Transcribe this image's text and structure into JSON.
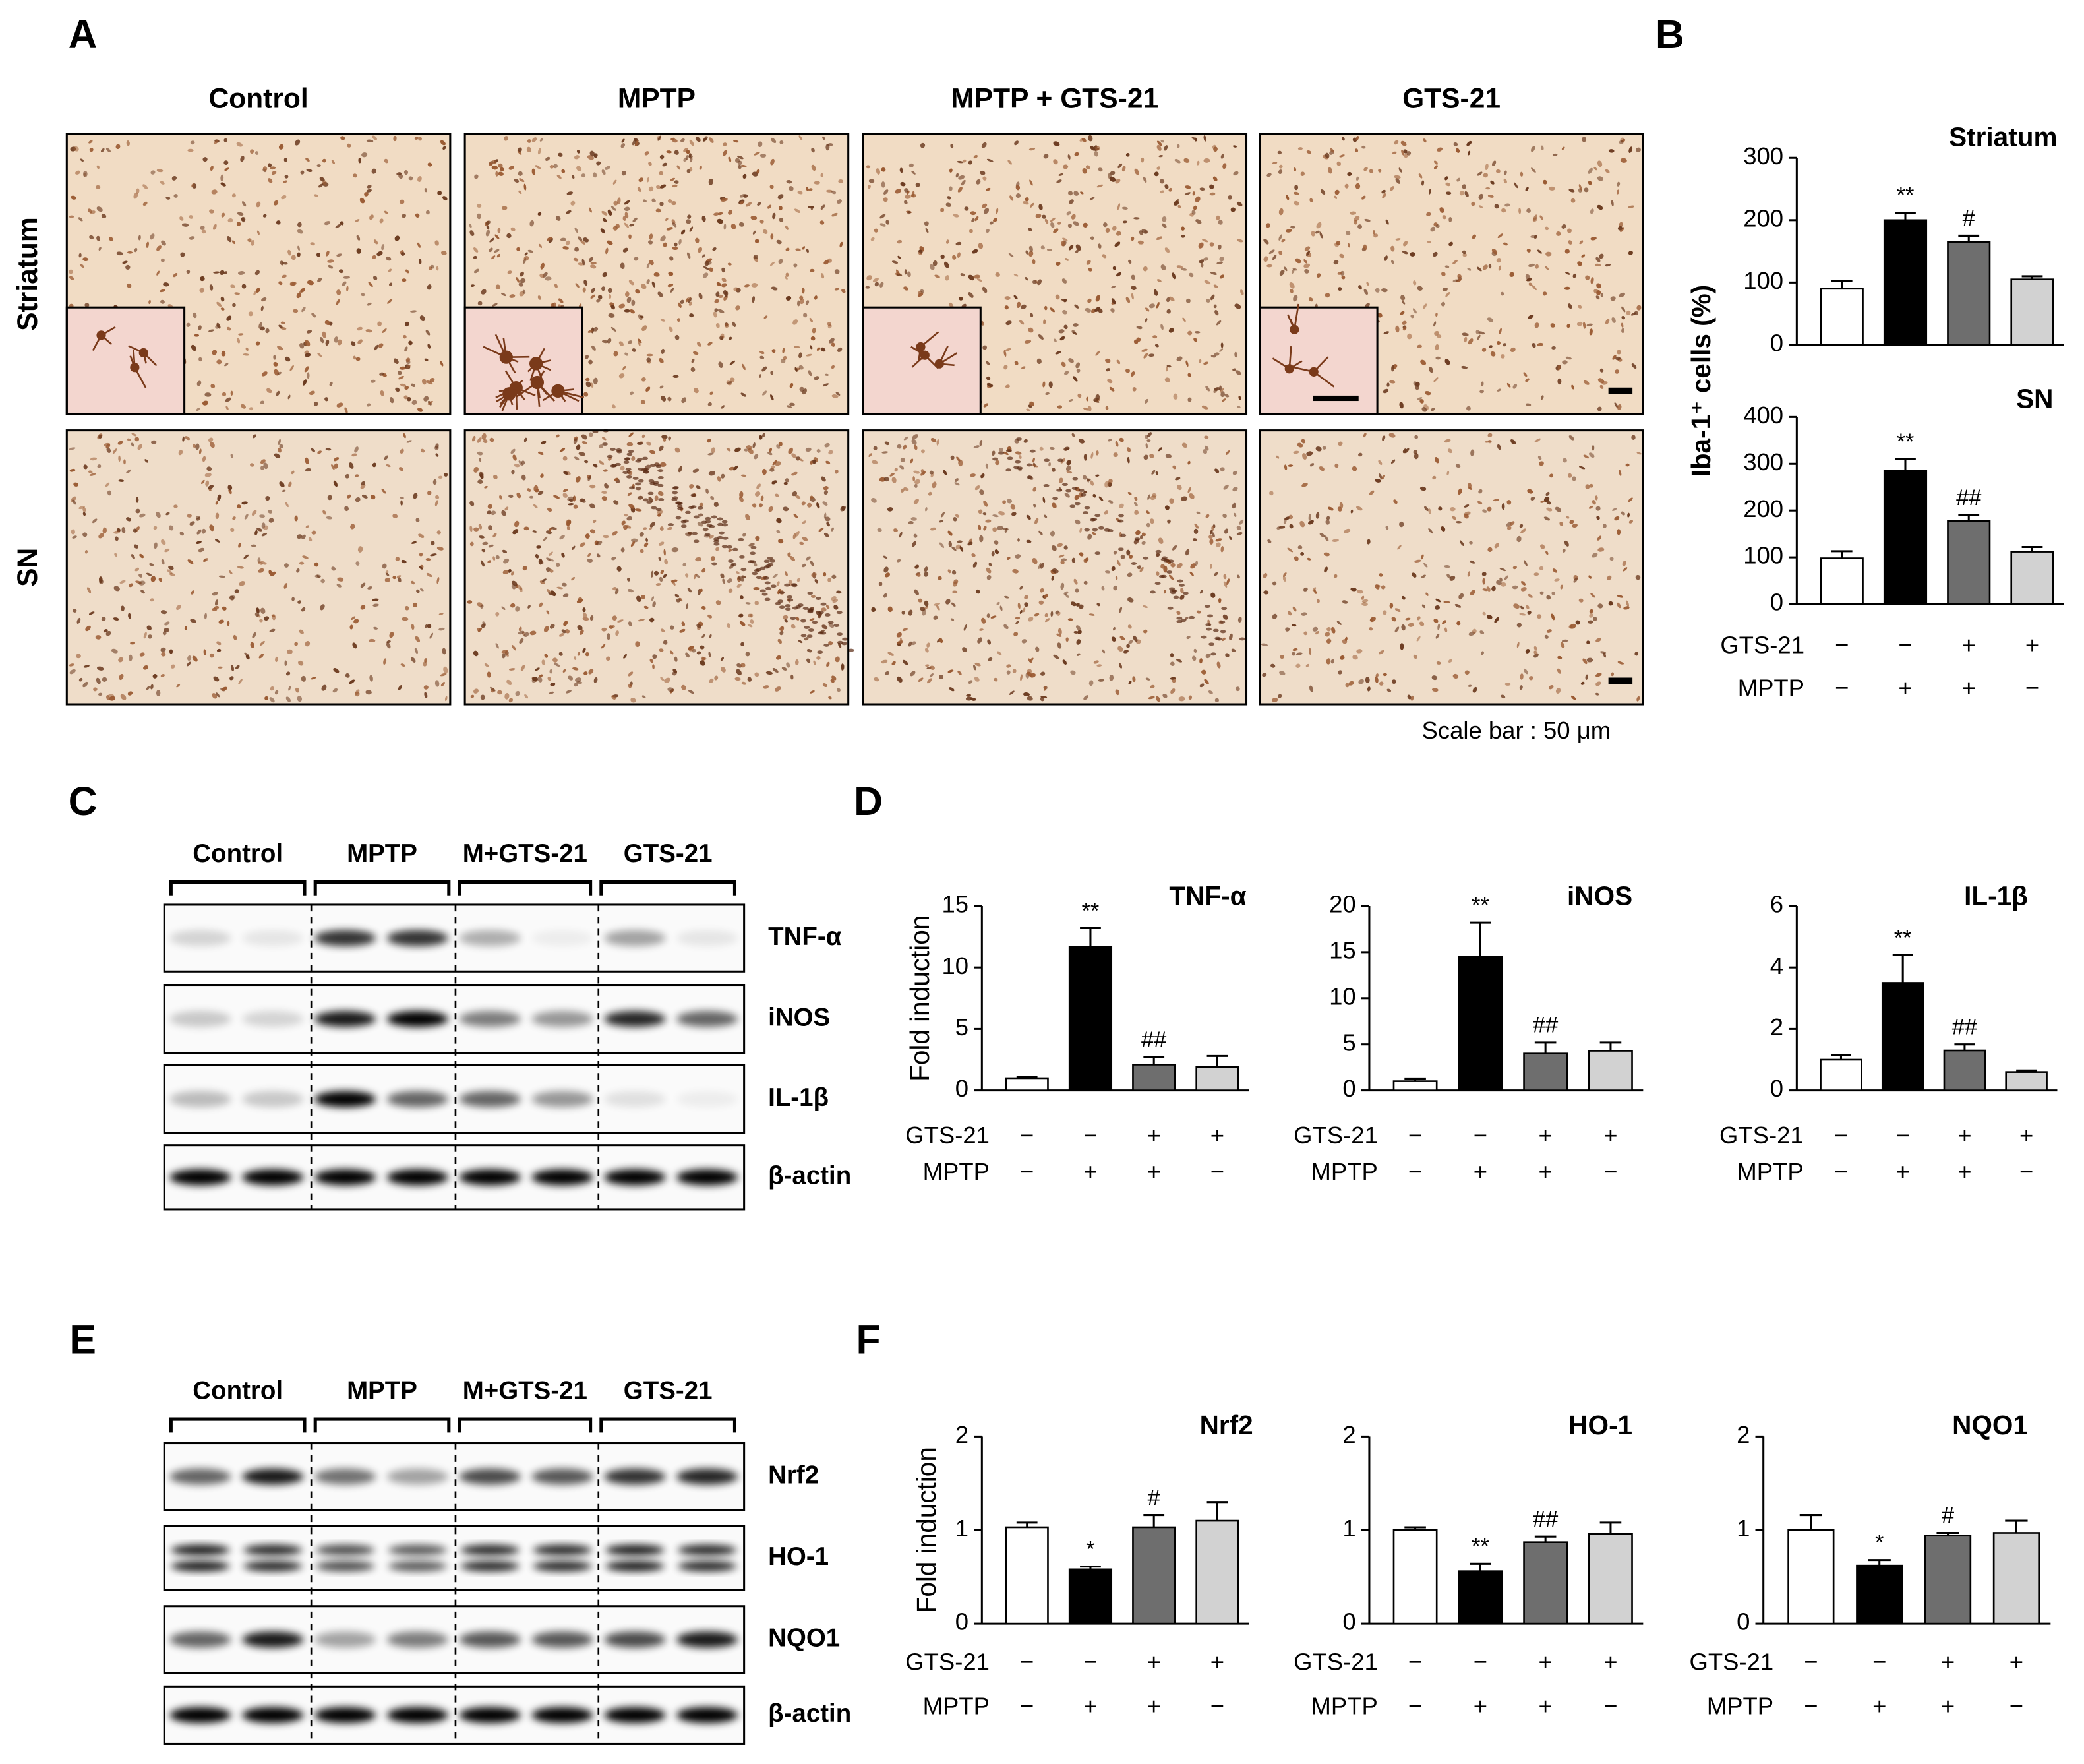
{
  "figure": {
    "panel_letters": [
      "A",
      "B",
      "C",
      "D",
      "E",
      "F"
    ],
    "a_columns": [
      "Control",
      "MPTP",
      "MPTP + GTS-21",
      "GTS-21"
    ],
    "a_rows": [
      "Striatum",
      "SN"
    ],
    "scale_bar": "Scale bar : 50 μm",
    "c_groups": [
      "Control",
      "MPTP",
      "M+GTS-21",
      "GTS-21"
    ],
    "c_blots": [
      "TNF-α",
      "iNOS",
      "IL-1β",
      "β-actin"
    ],
    "e_groups": [
      "Control",
      "MPTP",
      "M+GTS-21",
      "GTS-21"
    ],
    "e_blots": [
      "Nrf2",
      "HO-1",
      "NQO1",
      "β-actin"
    ]
  },
  "chart_data": [
    {
      "type": "bar",
      "title": "Striatum",
      "y_label": "Iba-1⁺ cells (%)",
      "ylim": [
        0,
        300
      ],
      "yticks": [
        0,
        100,
        200,
        300
      ],
      "values": [
        90,
        200,
        165,
        105
      ],
      "errors": [
        12,
        12,
        10,
        5
      ],
      "annotations": [
        null,
        "**",
        "#",
        null
      ],
      "colors": [
        "#ffffff",
        "#000000",
        "#6e6e6e",
        "#d2d2d2"
      ]
    },
    {
      "type": "bar",
      "title": "SN",
      "ylim": [
        0,
        400
      ],
      "yticks": [
        0,
        100,
        200,
        300,
        400
      ],
      "values": [
        98,
        285,
        178,
        112
      ],
      "errors": [
        15,
        25,
        12,
        10
      ],
      "annotations": [
        null,
        "**",
        "##",
        null
      ],
      "colors": [
        "#ffffff",
        "#000000",
        "#6e6e6e",
        "#d2d2d2"
      ],
      "conditions": [
        {
          "name": "GTS-21",
          "marks": [
            "−",
            "−",
            "+",
            "+"
          ]
        },
        {
          "name": "MPTP",
          "marks": [
            "−",
            "+",
            "+",
            "−"
          ]
        }
      ]
    },
    {
      "type": "bar",
      "title": "TNF-α",
      "y_label": "Fold induction",
      "ylim": [
        0,
        15
      ],
      "yticks": [
        0,
        5,
        10,
        15
      ],
      "values": [
        1,
        11.7,
        2.1,
        1.9
      ],
      "errors": [
        0.1,
        1.5,
        0.6,
        0.9
      ],
      "annotations": [
        null,
        "**",
        "##",
        null
      ],
      "colors": [
        "#ffffff",
        "#000000",
        "#6e6e6e",
        "#d2d2d2"
      ],
      "conditions": [
        {
          "name": "GTS-21",
          "marks": [
            "−",
            "−",
            "+",
            "+"
          ]
        },
        {
          "name": "MPTP",
          "marks": [
            "−",
            "+",
            "+",
            "−"
          ]
        }
      ]
    },
    {
      "type": "bar",
      "title": "iNOS",
      "ylim": [
        0,
        20
      ],
      "yticks": [
        0,
        5,
        10,
        15,
        20
      ],
      "values": [
        1,
        14.5,
        4,
        4.3
      ],
      "errors": [
        0.3,
        3.7,
        1.2,
        0.9
      ],
      "annotations": [
        null,
        "**",
        "##",
        null
      ],
      "colors": [
        "#ffffff",
        "#000000",
        "#6e6e6e",
        "#d2d2d2"
      ],
      "conditions": [
        {
          "name": "GTS-21",
          "marks": [
            "−",
            "−",
            "+",
            "+"
          ]
        },
        {
          "name": "MPTP",
          "marks": [
            "−",
            "+",
            "+",
            "−"
          ]
        }
      ]
    },
    {
      "type": "bar",
      "title": "IL-1β",
      "ylim": [
        0,
        6
      ],
      "yticks": [
        0,
        2,
        4,
        6
      ],
      "values": [
        1,
        3.5,
        1.3,
        0.6
      ],
      "errors": [
        0.15,
        0.9,
        0.2,
        0.05
      ],
      "annotations": [
        null,
        "**",
        "##",
        null
      ],
      "colors": [
        "#ffffff",
        "#000000",
        "#6e6e6e",
        "#d2d2d2"
      ],
      "conditions": [
        {
          "name": "GTS-21",
          "marks": [
            "−",
            "−",
            "+",
            "+"
          ]
        },
        {
          "name": "MPTP",
          "marks": [
            "−",
            "+",
            "+",
            "−"
          ]
        }
      ]
    },
    {
      "type": "bar",
      "title": "Nrf2",
      "y_label": "Fold induction",
      "ylim": [
        0,
        2
      ],
      "yticks": [
        0,
        1,
        2
      ],
      "values": [
        1.03,
        0.58,
        1.03,
        1.1
      ],
      "errors": [
        0.05,
        0.03,
        0.13,
        0.2
      ],
      "annotations": [
        null,
        "*",
        "#",
        null
      ],
      "colors": [
        "#ffffff",
        "#000000",
        "#6e6e6e",
        "#d2d2d2"
      ],
      "conditions": [
        {
          "name": "GTS-21",
          "marks": [
            "−",
            "−",
            "+",
            "+"
          ]
        },
        {
          "name": "MPTP",
          "marks": [
            "−",
            "+",
            "+",
            "−"
          ]
        }
      ]
    },
    {
      "type": "bar",
      "title": "HO-1",
      "ylim": [
        0,
        2
      ],
      "yticks": [
        0,
        1,
        2
      ],
      "values": [
        1.0,
        0.56,
        0.87,
        0.96
      ],
      "errors": [
        0.03,
        0.08,
        0.06,
        0.12
      ],
      "annotations": [
        null,
        "**",
        "##",
        null
      ],
      "colors": [
        "#ffffff",
        "#000000",
        "#6e6e6e",
        "#d2d2d2"
      ],
      "conditions": [
        {
          "name": "GTS-21",
          "marks": [
            "−",
            "−",
            "+",
            "+"
          ]
        },
        {
          "name": "MPTP",
          "marks": [
            "−",
            "+",
            "+",
            "−"
          ]
        }
      ]
    },
    {
      "type": "bar",
      "title": "NQO1",
      "ylim": [
        0,
        2
      ],
      "yticks": [
        0,
        1,
        2
      ],
      "values": [
        1.0,
        0.62,
        0.94,
        0.97
      ],
      "errors": [
        0.16,
        0.06,
        0.03,
        0.13
      ],
      "annotations": [
        null,
        "*",
        "#",
        null
      ],
      "colors": [
        "#ffffff",
        "#000000",
        "#6e6e6e",
        "#d2d2d2"
      ],
      "conditions": [
        {
          "name": "GTS-21",
          "marks": [
            "−",
            "−",
            "+",
            "+"
          ]
        },
        {
          "name": "MPTP",
          "marks": [
            "−",
            "+",
            "+",
            "−"
          ]
        }
      ]
    }
  ]
}
